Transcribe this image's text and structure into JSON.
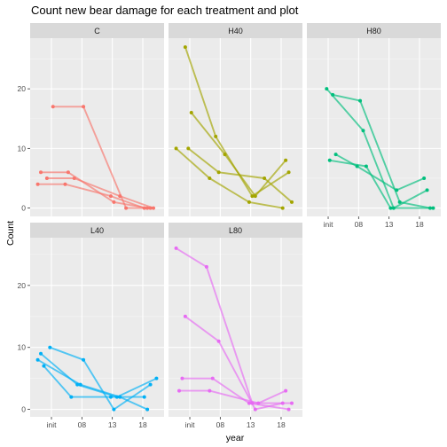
{
  "chart_data": {
    "type": "line",
    "title": "Count new bear damage for each treatment and plot",
    "xlabel": "year",
    "ylabel": "Count",
    "x_categories": [
      "init",
      "08",
      "13",
      "18"
    ],
    "y_ticks": [
      0,
      10,
      20
    ],
    "grid": true,
    "legend": "none",
    "facets": [
      {
        "name": "C",
        "color": "#F8766D",
        "ylim": [
          -1.4,
          28.5
        ],
        "series": [
          {
            "x": [
              0.55,
              1.55,
              2.95,
              3.75
            ],
            "y": [
              17,
              17,
              0,
              0
            ]
          },
          {
            "x": [
              0.15,
              1.05,
              2.55,
              3.65
            ],
            "y": [
              6,
              6,
              1,
              0
            ]
          },
          {
            "x": [
              0.35,
              1.25,
              2.75,
              3.85
            ],
            "y": [
              5,
              5,
              2,
              0
            ]
          },
          {
            "x": [
              0.05,
              0.95,
              2.45,
              3.55
            ],
            "y": [
              4,
              4,
              2,
              0
            ]
          }
        ]
      },
      {
        "name": "H40",
        "color": "#A3A500",
        "ylim": [
          -1.4,
          28.5
        ],
        "series": [
          {
            "x": [
              0.35,
              1.35,
              2.55,
              3.75
            ],
            "y": [
              27,
              12,
              2,
              6
            ]
          },
          {
            "x": [
              0.55,
              1.65,
              2.65,
              3.65
            ],
            "y": [
              16,
              9,
              2,
              8
            ]
          },
          {
            "x": [
              0.05,
              1.15,
              2.45,
              3.55
            ],
            "y": [
              10,
              5,
              1,
              0
            ]
          },
          {
            "x": [
              0.45,
              1.45,
              2.95,
              3.85
            ],
            "y": [
              10,
              6,
              5,
              1
            ]
          }
        ]
      },
      {
        "name": "H80",
        "color": "#00BF7D",
        "ylim": [
          -1.4,
          28.5
        ],
        "series": [
          {
            "x": [
              0.45,
              1.65,
              2.65,
              3.75
            ],
            "y": [
              20,
              13,
              0,
              3
            ]
          },
          {
            "x": [
              0.65,
              1.55,
              2.85,
              3.85
            ],
            "y": [
              19,
              18,
              1,
              0
            ]
          },
          {
            "x": [
              0.75,
              1.45,
              2.75,
              3.65
            ],
            "y": [
              9,
              7,
              3,
              5
            ]
          },
          {
            "x": [
              0.55,
              1.75,
              2.55,
              3.95
            ],
            "y": [
              8,
              7,
              0,
              0
            ]
          }
        ]
      },
      {
        "name": "L40",
        "color": "#00B0F6",
        "ylim": [
          -1.2,
          27.7
        ],
        "series": [
          {
            "x": [
              0.45,
              1.55,
              2.55,
              3.75
            ],
            "y": [
              10,
              8,
              0,
              4
            ]
          },
          {
            "x": [
              0.15,
              1.35,
              2.65,
              3.95
            ],
            "y": [
              9,
              4,
              2,
              5
            ]
          },
          {
            "x": [
              0.05,
              1.45,
              2.75,
              3.65
            ],
            "y": [
              8,
              4,
              2,
              0
            ]
          },
          {
            "x": [
              0.25,
              1.15,
              2.45,
              3.55
            ],
            "y": [
              7,
              2,
              2,
              2
            ]
          }
        ]
      },
      {
        "name": "L80",
        "color": "#E76BF3",
        "ylim": [
          -1.2,
          27.7
        ],
        "series": [
          {
            "x": [
              0.05,
              1.05,
              2.55,
              3.85
            ],
            "y": [
              26,
              23,
              1,
              1
            ]
          },
          {
            "x": [
              0.35,
              1.45,
              2.65,
              3.55
            ],
            "y": [
              15,
              11,
              0,
              1
            ]
          },
          {
            "x": [
              0.25,
              1.25,
              2.45,
              3.75
            ],
            "y": [
              5,
              5,
              1,
              0
            ]
          },
          {
            "x": [
              0.15,
              1.15,
              2.75,
              3.65
            ],
            "y": [
              3,
              3,
              1,
              3
            ]
          }
        ]
      }
    ]
  }
}
